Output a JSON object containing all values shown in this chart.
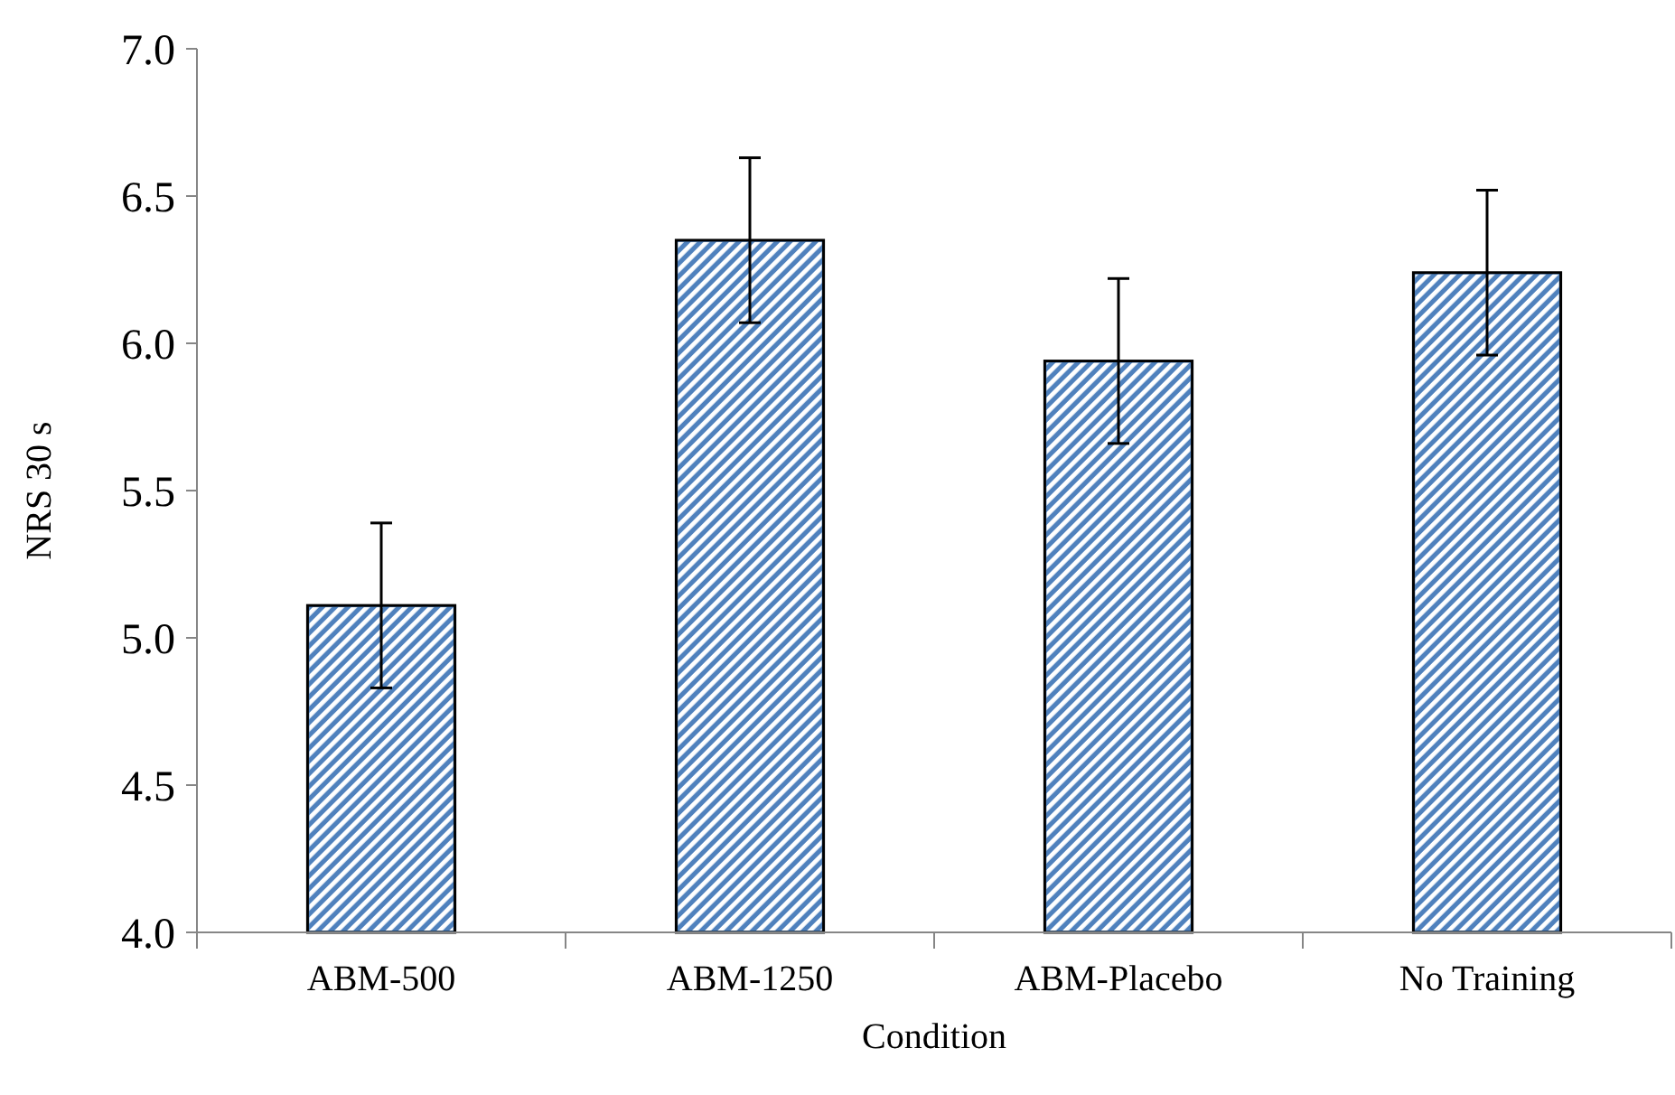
{
  "chart_data": {
    "type": "bar",
    "xlabel": "Condition",
    "ylabel": "NRS 30 s",
    "categories": [
      "ABM-500",
      "ABM-1250",
      "ABM-Placebo",
      "No Training"
    ],
    "values": [
      5.11,
      6.35,
      5.94,
      6.24
    ],
    "errors": [
      0.28,
      0.28,
      0.28,
      0.28
    ],
    "color": "#4f81bd",
    "ylim": [
      4.0,
      7.0
    ],
    "yticks": [
      {
        "value": 4,
        "label": "4.0"
      },
      {
        "value": 4.5,
        "label": "4.5"
      },
      {
        "value": 5,
        "label": "5.0"
      },
      {
        "value": 5.5,
        "label": "5.5"
      },
      {
        "value": 6,
        "label": "6.0"
      },
      {
        "value": 6.5,
        "label": "6.5"
      },
      {
        "value": 7,
        "label": "7.0"
      }
    ]
  }
}
